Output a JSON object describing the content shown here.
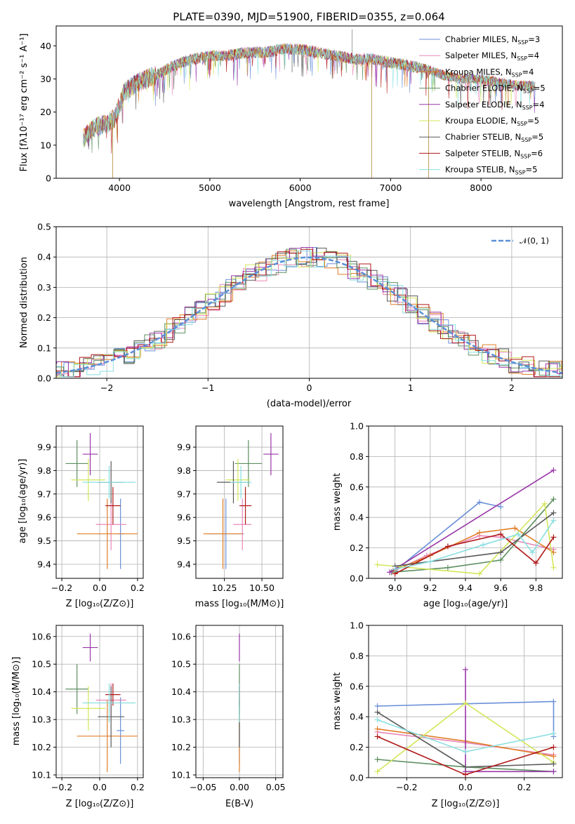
{
  "colors": [
    "#6a8fd8",
    "#e987b8",
    "#e07f2a",
    "#5d8f60",
    "#9936a8",
    "#d4e65a",
    "#5a5a5a",
    "#b01818",
    "#8adfe0"
  ],
  "panels": {
    "spectrum": {
      "title": "PLATE=0390, MJD=51900, FIBERID=0355, z=0.064",
      "xlabel": "wavelength [Angstrom, rest frame]",
      "ylabel": "Flux [fλ10⁻¹⁷ erg cm⁻² s⁻¹ A⁻¹]",
      "xlim": [
        3300,
        8900
      ],
      "ylim": [
        0,
        46
      ],
      "xticks": [
        4000,
        5000,
        6000,
        7000,
        8000
      ],
      "yticks": [
        0,
        10,
        20,
        30,
        40
      ],
      "legend": [
        {
          "label": "Chabrier MILES, N",
          "sub": "SSP",
          "suffix": "=3"
        },
        {
          "label": "Salpeter MILES, N",
          "sub": "SSP",
          "suffix": "=4"
        },
        {
          "label": "Kroupa MILES, N",
          "sub": "SSP",
          "suffix": "=4"
        },
        {
          "label": "Chabrier ELODIE, N",
          "sub": "SSP",
          "suffix": "=5"
        },
        {
          "label": "Salpeter ELODIE, N",
          "sub": "SSP",
          "suffix": "=4"
        },
        {
          "label": "Kroupa ELODIE, N",
          "sub": "SSP",
          "suffix": "=5"
        },
        {
          "label": "Chabrier STELIB, N",
          "sub": "SSP",
          "suffix": "=5"
        },
        {
          "label": "Salpeter STELIB, N",
          "sub": "SSP",
          "suffix": "=6"
        },
        {
          "label": "Kroupa STELIB, N",
          "sub": "SSP",
          "suffix": "=5"
        }
      ],
      "continuum": [
        [
          3600,
          12
        ],
        [
          3700,
          15
        ],
        [
          3800,
          16
        ],
        [
          3950,
          18
        ],
        [
          4050,
          26
        ],
        [
          4200,
          29
        ],
        [
          4400,
          31
        ],
        [
          4600,
          34
        ],
        [
          4800,
          36
        ],
        [
          5000,
          37
        ],
        [
          5200,
          37
        ],
        [
          5400,
          38
        ],
        [
          5600,
          38
        ],
        [
          5800,
          39
        ],
        [
          6000,
          39
        ],
        [
          6200,
          38
        ],
        [
          6400,
          37
        ],
        [
          6600,
          36
        ],
        [
          6800,
          36
        ],
        [
          7000,
          35
        ],
        [
          7200,
          34
        ],
        [
          7400,
          33
        ],
        [
          7600,
          31
        ],
        [
          7800,
          30
        ],
        [
          8000,
          30
        ],
        [
          8200,
          29
        ],
        [
          8400,
          28
        ],
        [
          8600,
          28
        ]
      ]
    },
    "residuals": {
      "xlabel": "(data-model)/error",
      "ylabel": "Normed distribution",
      "xlim": [
        -2.5,
        2.5
      ],
      "ylim": [
        0,
        0.5
      ],
      "xticks": [
        -2,
        -1,
        0,
        1,
        2
      ],
      "yticks": [
        0.0,
        0.1,
        0.2,
        0.3,
        0.4,
        0.5
      ],
      "ytick_labels": [
        "0.0",
        "0.1",
        "0.2",
        "0.3",
        "0.4",
        "0.5"
      ],
      "legend_label": "𝒩(0, 1)",
      "legend_color": "#5b8fd8"
    },
    "age_z": {
      "xlabel": "Z [log₁₀(Z/Z⊙)]",
      "ylabel": "age  [log₁₀(age/yr)]",
      "xlim": [
        -0.23,
        0.23
      ],
      "ylim": [
        9.34,
        9.99
      ],
      "xticks": [
        -0.2,
        0.0,
        0.2
      ],
      "xtick_labels": [
        "−0.2",
        "0.0",
        "0.2"
      ],
      "yticks": [
        9.4,
        9.5,
        9.6,
        9.7,
        9.8,
        9.9
      ],
      "ytick_labels": [
        "9.4",
        "9.5",
        "9.6",
        "9.7",
        "9.8",
        "9.9"
      ]
    },
    "age_mass": {
      "xlabel": "mass [log₁₀(M/M⊙)]",
      "xlim": [
        10.06,
        10.64
      ],
      "ylim": [
        9.34,
        9.99
      ],
      "xticks": [
        10.25,
        10.5
      ],
      "xtick_labels": [
        "10.25",
        "10.50"
      ],
      "yticks": [
        9.4,
        9.5,
        9.6,
        9.7,
        9.8,
        9.9
      ],
      "ytick_labels": [
        "9.4",
        "9.5",
        "9.6",
        "9.7",
        "9.8",
        "9.9"
      ]
    },
    "weight_age": {
      "xlabel": "age  [log₁₀(age/yr)]",
      "ylabel": "mass weight",
      "xlim": [
        8.85,
        9.95
      ],
      "ylim": [
        0,
        1
      ],
      "xticks": [
        9.0,
        9.2,
        9.4,
        9.6,
        9.8
      ],
      "xtick_labels": [
        "9.0",
        "9.2",
        "9.4",
        "9.6",
        "9.8"
      ],
      "yticks": [
        0,
        0.2,
        0.4,
        0.6,
        0.8,
        1.0
      ],
      "ytick_labels": [
        "0.0",
        "0.2",
        "0.4",
        "0.6",
        "0.8",
        "1.0"
      ]
    },
    "mass_z": {
      "xlabel": "Z [log₁₀(Z/Z⊙)]",
      "ylabel": "mass [log₁₀(M/M⊙)]",
      "xlim": [
        -0.23,
        0.23
      ],
      "ylim": [
        10.09,
        10.64
      ],
      "xticks": [
        -0.2,
        0.0,
        0.2
      ],
      "xtick_labels": [
        "−0.2",
        "0.0",
        "0.2"
      ],
      "yticks": [
        10.1,
        10.2,
        10.3,
        10.4,
        10.5,
        10.6
      ],
      "ytick_labels": [
        "10.1",
        "10.2",
        "10.3",
        "10.4",
        "10.5",
        "10.6"
      ]
    },
    "mass_ebv": {
      "xlabel": "E(B-V)",
      "xlim": [
        -0.06,
        0.06
      ],
      "ylim": [
        10.09,
        10.64
      ],
      "xticks": [
        -0.05,
        0.0,
        0.05
      ],
      "xtick_labels": [
        "−0.05",
        "0.00",
        "0.05"
      ],
      "yticks": [
        10.1,
        10.2,
        10.3,
        10.4,
        10.5,
        10.6
      ],
      "ytick_labels": [
        "10.1",
        "10.2",
        "10.3",
        "10.4",
        "10.5",
        "10.6"
      ]
    },
    "weight_z": {
      "xlabel": "Z [log₁₀(Z/Z⊙)]",
      "ylabel": "mass weight",
      "xlim": [
        -0.33,
        0.33
      ],
      "ylim": [
        0,
        1
      ],
      "xticks": [
        -0.2,
        0.0,
        0.2
      ],
      "xtick_labels": [
        "−0.2",
        "0.0",
        "0.2"
      ],
      "yticks": [
        0,
        0.2,
        0.4,
        0.6,
        0.8,
        1.0
      ],
      "ytick_labels": [
        "0.0",
        "0.2",
        "0.4",
        "0.6",
        "0.8",
        "1.0"
      ]
    }
  },
  "chart_data": {
    "type": "line",
    "models": [
      {
        "Z": 0.11,
        "dZ": 0.02,
        "age": 9.53,
        "dage": 0.15,
        "mass": 10.26,
        "dmass": 0.12,
        "ebv": 0.0,
        "w_age": [
          [
            9.0,
            0.05
          ],
          [
            9.48,
            0.5
          ],
          [
            9.6,
            0.47
          ]
        ],
        "w_z": [
          [
            -0.3,
            0.47
          ],
          [
            0.3,
            0.5
          ],
          [
            0.3,
            0.27
          ]
        ]
      },
      {
        "Z": 0.06,
        "dZ": 0.08,
        "age": 9.57,
        "dage": 0.11,
        "mass": 10.37,
        "dmass": 0.06,
        "ebv": 0.0,
        "w_age": [
          [
            8.98,
            0.04
          ],
          [
            9.18,
            0.15
          ],
          [
            9.48,
            0.28
          ],
          [
            9.6,
            0.27
          ],
          [
            9.9,
            0.19
          ]
        ],
        "w_z": [
          [
            -0.3,
            0.3
          ],
          [
            0.0,
            0.23
          ],
          [
            0.3,
            0.15
          ]
        ]
      },
      {
        "Z": 0.04,
        "dZ": 0.16,
        "age": 9.53,
        "dage": 0.15,
        "mass": 10.24,
        "dmass": 0.13,
        "ebv": 0.0,
        "w_age": [
          [
            8.99,
            0.05
          ],
          [
            9.2,
            0.15
          ],
          [
            9.48,
            0.3
          ],
          [
            9.68,
            0.33
          ],
          [
            9.9,
            0.17
          ]
        ],
        "w_z": [
          [
            -0.3,
            0.32
          ],
          [
            0.0,
            0.24
          ],
          [
            0.3,
            0.14
          ]
        ]
      },
      {
        "Z": -0.12,
        "dZ": 0.06,
        "age": 9.83,
        "dage": 0.1,
        "mass": 10.41,
        "dmass": 0.09,
        "ebv": 0.0,
        "w_age": [
          [
            8.98,
            0.04
          ],
          [
            9.3,
            0.07
          ],
          [
            9.6,
            0.12
          ],
          [
            9.9,
            0.52
          ]
        ],
        "w_z": [
          [
            -0.3,
            0.12
          ],
          [
            0.0,
            0.07
          ],
          [
            0.3,
            0.04
          ]
        ]
      },
      {
        "Z": -0.05,
        "dZ": 0.04,
        "age": 9.87,
        "dage": 0.09,
        "mass": 10.56,
        "dmass": 0.05,
        "ebv": 0.0,
        "w_age": [
          [
            8.97,
            0.04
          ],
          [
            9.9,
            0.71
          ]
        ],
        "w_z": [
          [
            0.0,
            0.71
          ],
          [
            0.0,
            0.04
          ],
          [
            0.3,
            0.04
          ]
        ]
      },
      {
        "Z": -0.06,
        "dZ": 0.09,
        "age": 9.76,
        "dage": 0.09,
        "mass": 10.34,
        "dmass": 0.08,
        "ebv": 0.0,
        "w_age": [
          [
            8.9,
            0.09
          ],
          [
            9.48,
            0.03
          ],
          [
            9.85,
            0.49
          ],
          [
            9.9,
            0.07
          ]
        ],
        "w_z": [
          [
            -0.3,
            0.04
          ],
          [
            0.0,
            0.49
          ],
          [
            0.3,
            0.1
          ]
        ]
      },
      {
        "Z": 0.06,
        "dZ": 0.07,
        "age": 9.75,
        "dage": 0.09,
        "mass": 10.31,
        "dmass": 0.11,
        "ebv": 0.0,
        "w_age": [
          [
            9.0,
            0.08
          ],
          [
            9.6,
            0.17
          ],
          [
            9.9,
            0.43
          ]
        ],
        "w_z": [
          [
            -0.3,
            0.43
          ],
          [
            0.0,
            0.07
          ],
          [
            0.3,
            0.09
          ]
        ]
      },
      {
        "Z": 0.07,
        "dZ": 0.04,
        "age": 9.65,
        "dage": 0.08,
        "mass": 10.39,
        "dmass": 0.04,
        "ebv": 0.0,
        "w_age": [
          [
            9.0,
            0.03
          ],
          [
            9.3,
            0.21
          ],
          [
            9.6,
            0.29
          ],
          [
            9.8,
            0.1
          ],
          [
            9.9,
            0.27
          ]
        ],
        "w_z": [
          [
            -0.3,
            0.27
          ],
          [
            0.0,
            0.02
          ],
          [
            0.3,
            0.2
          ]
        ]
      },
      {
        "Z": 0.05,
        "dZ": 0.14,
        "age": 9.75,
        "dage": 0.07,
        "mass": 10.36,
        "dmass": 0.07,
        "ebv": 0.0,
        "w_age": [
          [
            9.0,
            0.06
          ],
          [
            9.2,
            0.11
          ],
          [
            9.5,
            0.22
          ],
          [
            9.7,
            0.29
          ],
          [
            9.78,
            0.17
          ],
          [
            9.9,
            0.38
          ]
        ],
        "w_z": [
          [
            -0.3,
            0.38
          ],
          [
            0.0,
            0.17
          ],
          [
            0.3,
            0.29
          ]
        ]
      }
    ]
  }
}
